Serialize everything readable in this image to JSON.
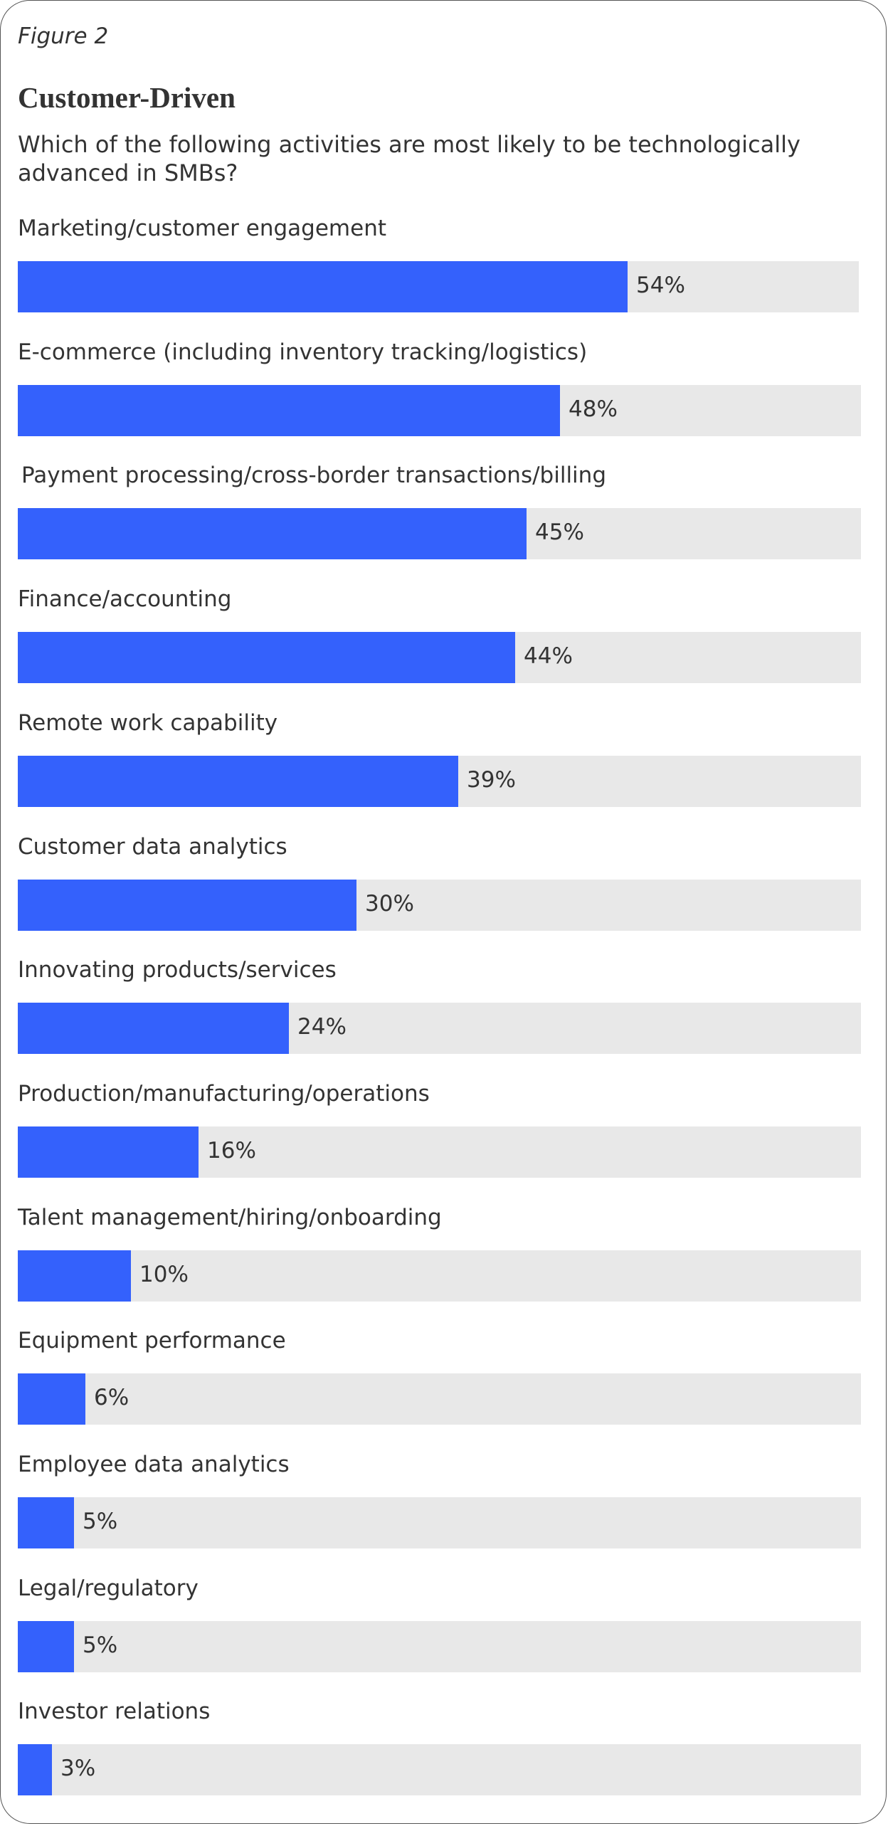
{
  "figure_label": "Figure 2",
  "chart_data": {
    "type": "bar",
    "orientation": "horizontal",
    "title": "Customer-Driven",
    "subtitle": "Which of the following activities are most likely to be technologically advanced in SMBs?",
    "categories": [
      "Marketing/customer engagement",
      "E-commerce (including inventory tracking/logistics)",
      "Payment processing/cross-border transactions/billing",
      "Finance/accounting",
      "Remote work capability",
      "Customer data analytics",
      "Innovating products/services",
      "Production/manufacturing/operations",
      "Talent management/hiring/onboarding",
      "Equipment performance",
      "Employee data analytics",
      "Legal/regulatory",
      "Investor relations"
    ],
    "values": [
      54,
      48,
      45,
      44,
      39,
      30,
      24,
      16,
      10,
      6,
      5,
      5,
      3
    ],
    "value_labels": [
      "54%",
      "48%",
      "45%",
      "44%",
      "39%",
      "30%",
      "24%",
      "16%",
      "10%",
      "6%",
      "5%",
      "5%",
      "3%"
    ],
    "xlim": [
      0,
      100
    ],
    "grid": false,
    "colors": {
      "bar": "#3461fc",
      "track": "#e8e8e8",
      "text": "#333333"
    }
  }
}
